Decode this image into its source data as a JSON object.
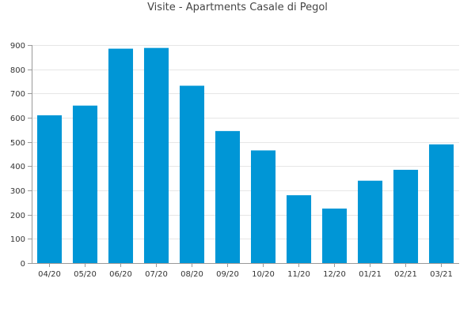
{
  "chart_data": {
    "type": "bar",
    "title": "Visite - Apartments Casale di Pegol",
    "xlabel": "",
    "ylabel": "",
    "categories": [
      "04/20",
      "05/20",
      "06/20",
      "07/20",
      "08/20",
      "09/20",
      "10/20",
      "11/20",
      "12/20",
      "01/21",
      "02/21",
      "03/21"
    ],
    "values": [
      610,
      650,
      885,
      888,
      732,
      545,
      465,
      280,
      225,
      340,
      385,
      490
    ],
    "ylim": [
      0,
      900
    ],
    "yticks": [
      "0",
      "100",
      "200",
      "300",
      "400",
      "500",
      "600",
      "700",
      "800",
      "900"
    ],
    "grid": true,
    "legend": "none",
    "bar_color": "#0096d6",
    "grid_color": "#e6e6e6",
    "axis_color": "#999999"
  }
}
